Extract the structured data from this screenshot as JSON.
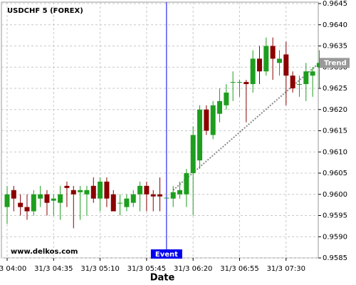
{
  "chart_data": {
    "type": "candlestick",
    "title": "USDCHF 5 (FOREX)",
    "watermark": "www.delkos.com",
    "x_label": "Date",
    "categories": [
      "31/3 04:00",
      null,
      null,
      null,
      null,
      null,
      null,
      "31/3 04:35",
      null,
      null,
      null,
      null,
      null,
      null,
      "31/3 05:10",
      null,
      null,
      null,
      null,
      null,
      null,
      "31/3 05:45",
      null,
      null,
      null,
      null,
      null,
      null,
      "31/3 06:20",
      null,
      null,
      null,
      null,
      null,
      null,
      "31/3 06:55",
      null,
      null,
      null,
      null,
      null,
      null,
      "31/3 07:30",
      null,
      null,
      null,
      null,
      null
    ],
    "open": [
      0.9597,
      0.9601,
      0.9598,
      0.9597,
      0.9596,
      0.9599,
      0.96,
      0.95985,
      0.9598,
      0.9602,
      0.9601,
      0.96005,
      0.96,
      0.9602,
      0.9599,
      0.9603,
      0.96,
      0.9598,
      0.9597,
      0.9598,
      0.96,
      0.9602,
      0.96,
      0.96,
      0.95992,
      0.9599,
      0.96,
      0.96,
      0.9605,
      0.9608,
      0.962,
      0.9614,
      0.9619,
      0.9621,
      0.96265,
      0.96265,
      0.96265,
      0.9626,
      0.9632,
      0.9629,
      0.9635,
      0.9631,
      0.9633,
      0.9628,
      0.9626,
      0.9626,
      0.9628,
      0.963
    ],
    "high": [
      0.9602,
      0.9602,
      0.96,
      0.96,
      0.9601,
      0.9602,
      0.9601,
      0.96,
      0.9602,
      0.9603,
      0.9602,
      0.9602,
      0.9602,
      0.9604,
      0.9604,
      0.9604,
      0.9601,
      0.96,
      0.96,
      0.9601,
      0.9603,
      0.9603,
      0.9601,
      0.9604,
      0.95992,
      0.9602,
      0.9603,
      0.9606,
      0.9616,
      0.9621,
      0.9621,
      0.9622,
      0.9625,
      0.9626,
      0.9629,
      0.9627,
      0.9627,
      0.9634,
      0.9635,
      0.9637,
      0.9637,
      0.9634,
      0.9636,
      0.9629,
      0.9628,
      0.9631,
      0.963,
      0.9634
    ],
    "low": [
      0.9593,
      0.9596,
      0.9595,
      0.9594,
      0.9595,
      0.9597,
      0.9595,
      0.9595,
      0.9594,
      0.9597,
      0.9592,
      0.9594,
      0.9595,
      0.9598,
      0.9596,
      0.9597,
      0.9596,
      0.9595,
      0.9596,
      0.9597,
      0.9596,
      0.9596,
      0.9596,
      0.9596,
      0.95992,
      0.9597,
      0.9599,
      0.9597,
      0.9595,
      0.9606,
      0.9614,
      0.9613,
      0.9617,
      0.962,
      0.9622,
      0.9623,
      0.9617,
      0.9624,
      0.9626,
      0.9628,
      0.9627,
      0.9628,
      0.9621,
      0.9624,
      0.9623,
      0.9622,
      0.9623,
      0.9625
    ],
    "close": [
      0.96,
      0.9599,
      0.9597,
      0.9596,
      0.96,
      0.96,
      0.9598,
      0.9599,
      0.96,
      0.96015,
      0.96,
      0.9601,
      0.9601,
      0.9599,
      0.9603,
      0.9599,
      0.9596,
      0.9598,
      0.9599,
      0.96,
      0.9602,
      0.96,
      0.95995,
      0.95995,
      0.95992,
      0.96005,
      0.9601,
      0.9605,
      0.9614,
      0.962,
      0.9615,
      0.9621,
      0.9622,
      0.9624,
      0.96265,
      0.96265,
      0.9626,
      0.9632,
      0.9629,
      0.9635,
      0.9632,
      0.9632,
      0.9628,
      0.9625,
      0.9626,
      0.9629,
      0.9629,
      0.9631
    ],
    "up_color": "#1e9e1e",
    "down_color": "#8b0000",
    "ylim": [
      0.9585,
      0.9645
    ],
    "yticks": [
      {
        "value": 0.9585,
        "label": "0.9585"
      },
      {
        "value": 0.959,
        "label": "0.9590"
      },
      {
        "value": 0.9595,
        "label": "0.9595"
      },
      {
        "value": 0.96,
        "label": "0.9600"
      },
      {
        "value": 0.9605,
        "label": "0.9605"
      },
      {
        "value": 0.961,
        "label": "0.9610"
      },
      {
        "value": 0.9615,
        "label": "0.9615"
      },
      {
        "value": 0.962,
        "label": "0.9620"
      },
      {
        "value": 0.9625,
        "label": "0.9625"
      },
      {
        "value": 0.963,
        "label": "0.9630"
      },
      {
        "value": 0.9635,
        "label": "0.9635"
      },
      {
        "value": 0.964,
        "label": "0.9640"
      },
      {
        "value": 0.9645,
        "label": "0.9645"
      }
    ],
    "grid": true,
    "event": {
      "label": "Event",
      "index": 24,
      "color": "#0000ee"
    },
    "trend": {
      "label": "Trend",
      "x": [
        25,
        47
      ],
      "values": [
        0.9601,
        0.9631
      ],
      "color": "#888888"
    }
  }
}
